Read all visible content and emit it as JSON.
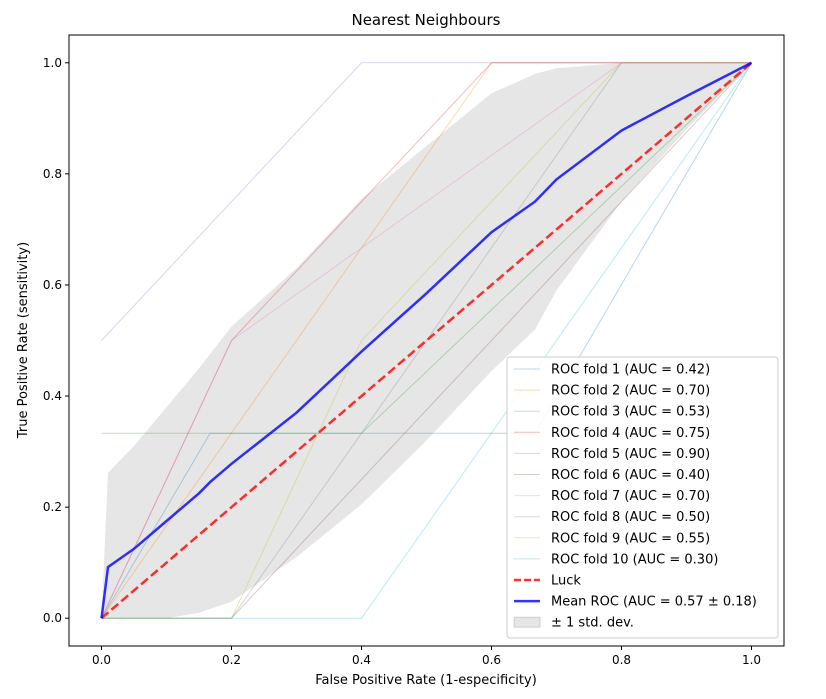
{
  "chart_data": {
    "type": "line",
    "title": "Nearest Neighbours",
    "xlabel": "False Positive Rate (1-especificity)",
    "ylabel": "True Positive Rate (sensitivity)",
    "xlim": [
      -0.05,
      1.05
    ],
    "ylim": [
      -0.05,
      1.05
    ],
    "xticks": [
      "0.0",
      "0.2",
      "0.4",
      "0.6",
      "0.8",
      "1.0"
    ],
    "yticks": [
      "0.0",
      "0.2",
      "0.4",
      "0.6",
      "0.8",
      "1.0"
    ],
    "grid": false,
    "legend_position": "lower-right",
    "folds": [
      {
        "name": "ROC fold 1 (AUC = 0.42)",
        "color": "#1f77b4",
        "x": [
          0,
          0.167,
          0.667,
          0.833,
          1.0
        ],
        "y": [
          0,
          0.333,
          0.333,
          0.667,
          1.0
        ]
      },
      {
        "name": "ROC fold 2 (AUC = 0.70)",
        "color": "#ff7f0e",
        "x": [
          0,
          0.6,
          1.0
        ],
        "y": [
          0,
          1.0,
          1.0
        ]
      },
      {
        "name": "ROC fold 3 (AUC = 0.53)",
        "color": "#2ca02c",
        "x": [
          0,
          0.4,
          1.0
        ],
        "y": [
          0.333,
          0.333,
          1.0
        ]
      },
      {
        "name": "ROC fold 4 (AUC = 0.75)",
        "color": "#d62728",
        "x": [
          0,
          0.2,
          0.6,
          1.0
        ],
        "y": [
          0,
          0.5,
          1.0,
          1.0
        ]
      },
      {
        "name": "ROC fold 5 (AUC = 0.90)",
        "color": "#9467bd",
        "x": [
          0,
          0.4,
          1.0
        ],
        "y": [
          0.5,
          1.0,
          1.0
        ]
      },
      {
        "name": "ROC fold 6 (AUC = 0.40)",
        "color": "#8c564b",
        "x": [
          0,
          0.2,
          1.0
        ],
        "y": [
          0,
          0,
          1.0
        ]
      },
      {
        "name": "ROC fold 7 (AUC = 0.70)",
        "color": "#e377c2",
        "x": [
          0,
          0.2,
          0.8,
          1.0
        ],
        "y": [
          0,
          0.5,
          1.0,
          1.0
        ]
      },
      {
        "name": "ROC fold 8 (AUC = 0.50)",
        "color": "#7f7f7f",
        "x": [
          0,
          0.2,
          0.4,
          0.6,
          0.8,
          1.0
        ],
        "y": [
          0,
          0,
          0.333,
          0.667,
          1.0,
          1.0
        ]
      },
      {
        "name": "ROC fold 9 (AUC = 0.55)",
        "color": "#bcbd22",
        "x": [
          0,
          0.2,
          0.4,
          0.8,
          1.0
        ],
        "y": [
          0,
          0,
          0.5,
          1.0,
          1.0
        ]
      },
      {
        "name": "ROC fold 10 (AUC = 0.30)",
        "color": "#17becf",
        "x": [
          0,
          0.4,
          1.0
        ],
        "y": [
          0,
          0,
          1.0
        ]
      }
    ],
    "luck": {
      "name": "Luck",
      "color": "#ff0000",
      "x": [
        0,
        1
      ],
      "y": [
        0,
        1
      ]
    },
    "mean_roc": {
      "name": "Mean ROC (AUC = 0.57 ± 0.18)",
      "color": "#0000ff",
      "x": [
        0,
        0.01,
        0.05,
        0.1,
        0.15,
        0.167,
        0.2,
        0.3,
        0.4,
        0.5,
        0.6,
        0.667,
        0.7,
        0.8,
        0.9,
        1.0
      ],
      "y": [
        0,
        0.092,
        0.125,
        0.175,
        0.225,
        0.245,
        0.278,
        0.37,
        0.48,
        0.585,
        0.695,
        0.75,
        0.79,
        0.878,
        0.94,
        1.0
      ]
    },
    "std_band": {
      "name": "± 1 std. dev.",
      "color": "#808080",
      "x": [
        0,
        0.01,
        0.05,
        0.1,
        0.15,
        0.2,
        0.3,
        0.4,
        0.5,
        0.6,
        0.667,
        0.7,
        0.8,
        0.9,
        1.0
      ],
      "upper": [
        0,
        0.262,
        0.31,
        0.38,
        0.45,
        0.525,
        0.63,
        0.755,
        0.85,
        0.945,
        0.98,
        0.99,
        1.0,
        1.0,
        1.0
      ],
      "lower": [
        0,
        0,
        0,
        0,
        0.01,
        0.03,
        0.11,
        0.205,
        0.32,
        0.445,
        0.52,
        0.59,
        0.75,
        0.88,
        1.0
      ]
    }
  }
}
